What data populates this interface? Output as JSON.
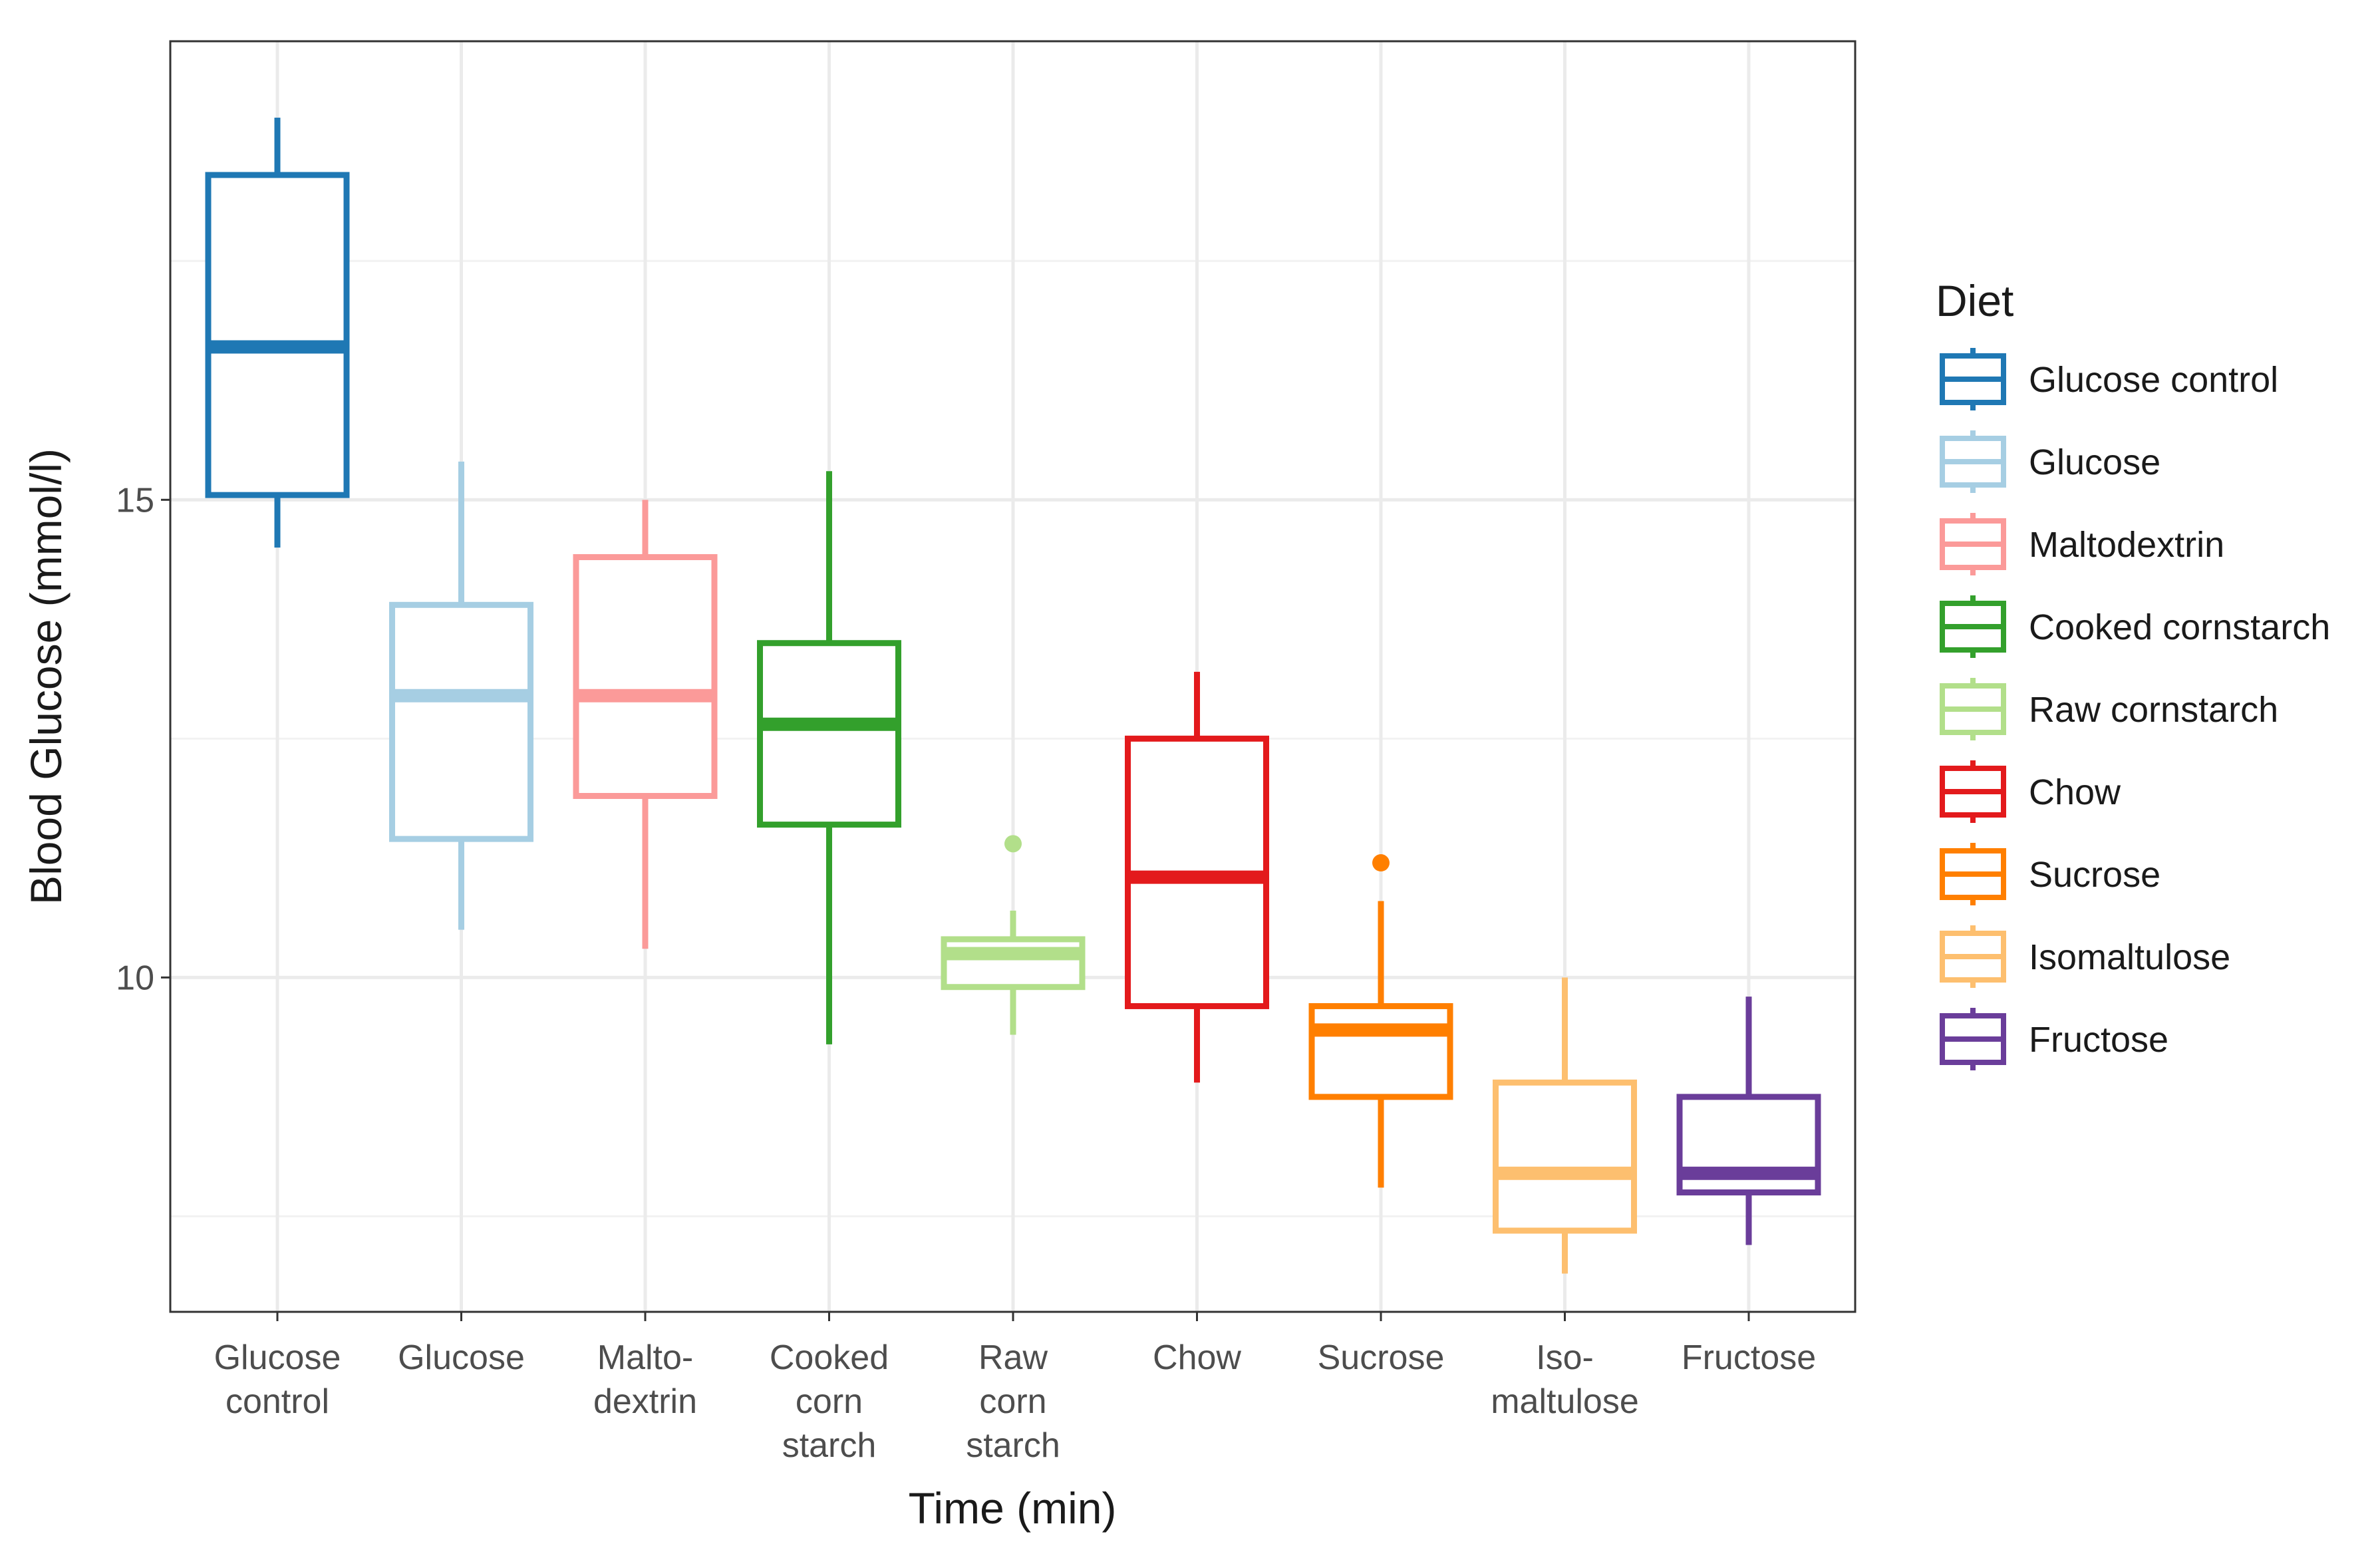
{
  "chart_data": {
    "type": "boxplot",
    "xlabel": "Time (min)",
    "ylabel": "Blood Glucose (mmol/l)",
    "ylim": [
      6.5,
      19.8
    ],
    "yticks": [
      10,
      15
    ],
    "grid": true,
    "legend_title": "Diet",
    "legend_position": "right",
    "categories": [
      [
        "Glucose",
        "control"
      ],
      [
        "Glucose"
      ],
      [
        "Malto-",
        "dextrin"
      ],
      [
        "Cooked",
        "corn",
        "starch"
      ],
      [
        "Raw",
        "corn",
        "starch"
      ],
      [
        "Chow"
      ],
      [
        "Sucrose"
      ],
      [
        "Iso-",
        "maltulose"
      ],
      [
        "Fructose"
      ]
    ],
    "series": [
      {
        "name": "Glucose control",
        "color": "#1f78b4",
        "whisker_low": 14.5,
        "q1": 15.05,
        "median": 16.6,
        "q3": 18.4,
        "whisker_high": 19.0,
        "outliers": []
      },
      {
        "name": "Glucose",
        "color": "#a6cee3",
        "whisker_low": 10.5,
        "q1": 11.45,
        "median": 12.95,
        "q3": 13.9,
        "whisker_high": 15.4,
        "outliers": []
      },
      {
        "name": "Maltodextrin",
        "color": "#fb9a99",
        "whisker_low": 10.3,
        "q1": 11.9,
        "median": 12.95,
        "q3": 14.4,
        "whisker_high": 15.0,
        "outliers": []
      },
      {
        "name": "Cooked cornstarch",
        "color": "#33a02c",
        "whisker_low": 9.3,
        "q1": 11.6,
        "median": 12.65,
        "q3": 13.5,
        "whisker_high": 15.3,
        "outliers": []
      },
      {
        "name": "Raw cornstarch",
        "color": "#b2df8a",
        "whisker_low": 9.4,
        "q1": 9.9,
        "median": 10.25,
        "q3": 10.4,
        "whisker_high": 10.7,
        "outliers": [
          11.4
        ]
      },
      {
        "name": "Chow",
        "color": "#e31a1c",
        "whisker_low": 8.9,
        "q1": 9.7,
        "median": 11.05,
        "q3": 12.5,
        "whisker_high": 13.2,
        "outliers": []
      },
      {
        "name": "Sucrose",
        "color": "#ff7f00",
        "whisker_low": 7.8,
        "q1": 8.75,
        "median": 9.45,
        "q3": 9.7,
        "whisker_high": 10.8,
        "outliers": [
          11.2
        ]
      },
      {
        "name": "Isomaltulose",
        "color": "#fdbf6f",
        "whisker_low": 6.9,
        "q1": 7.35,
        "median": 7.95,
        "q3": 8.9,
        "whisker_high": 10.0,
        "outliers": []
      },
      {
        "name": "Fructose",
        "color": "#6a3d9a",
        "whisker_low": 7.2,
        "q1": 7.75,
        "median": 7.95,
        "q3": 8.75,
        "whisker_high": 9.8,
        "outliers": []
      }
    ]
  }
}
